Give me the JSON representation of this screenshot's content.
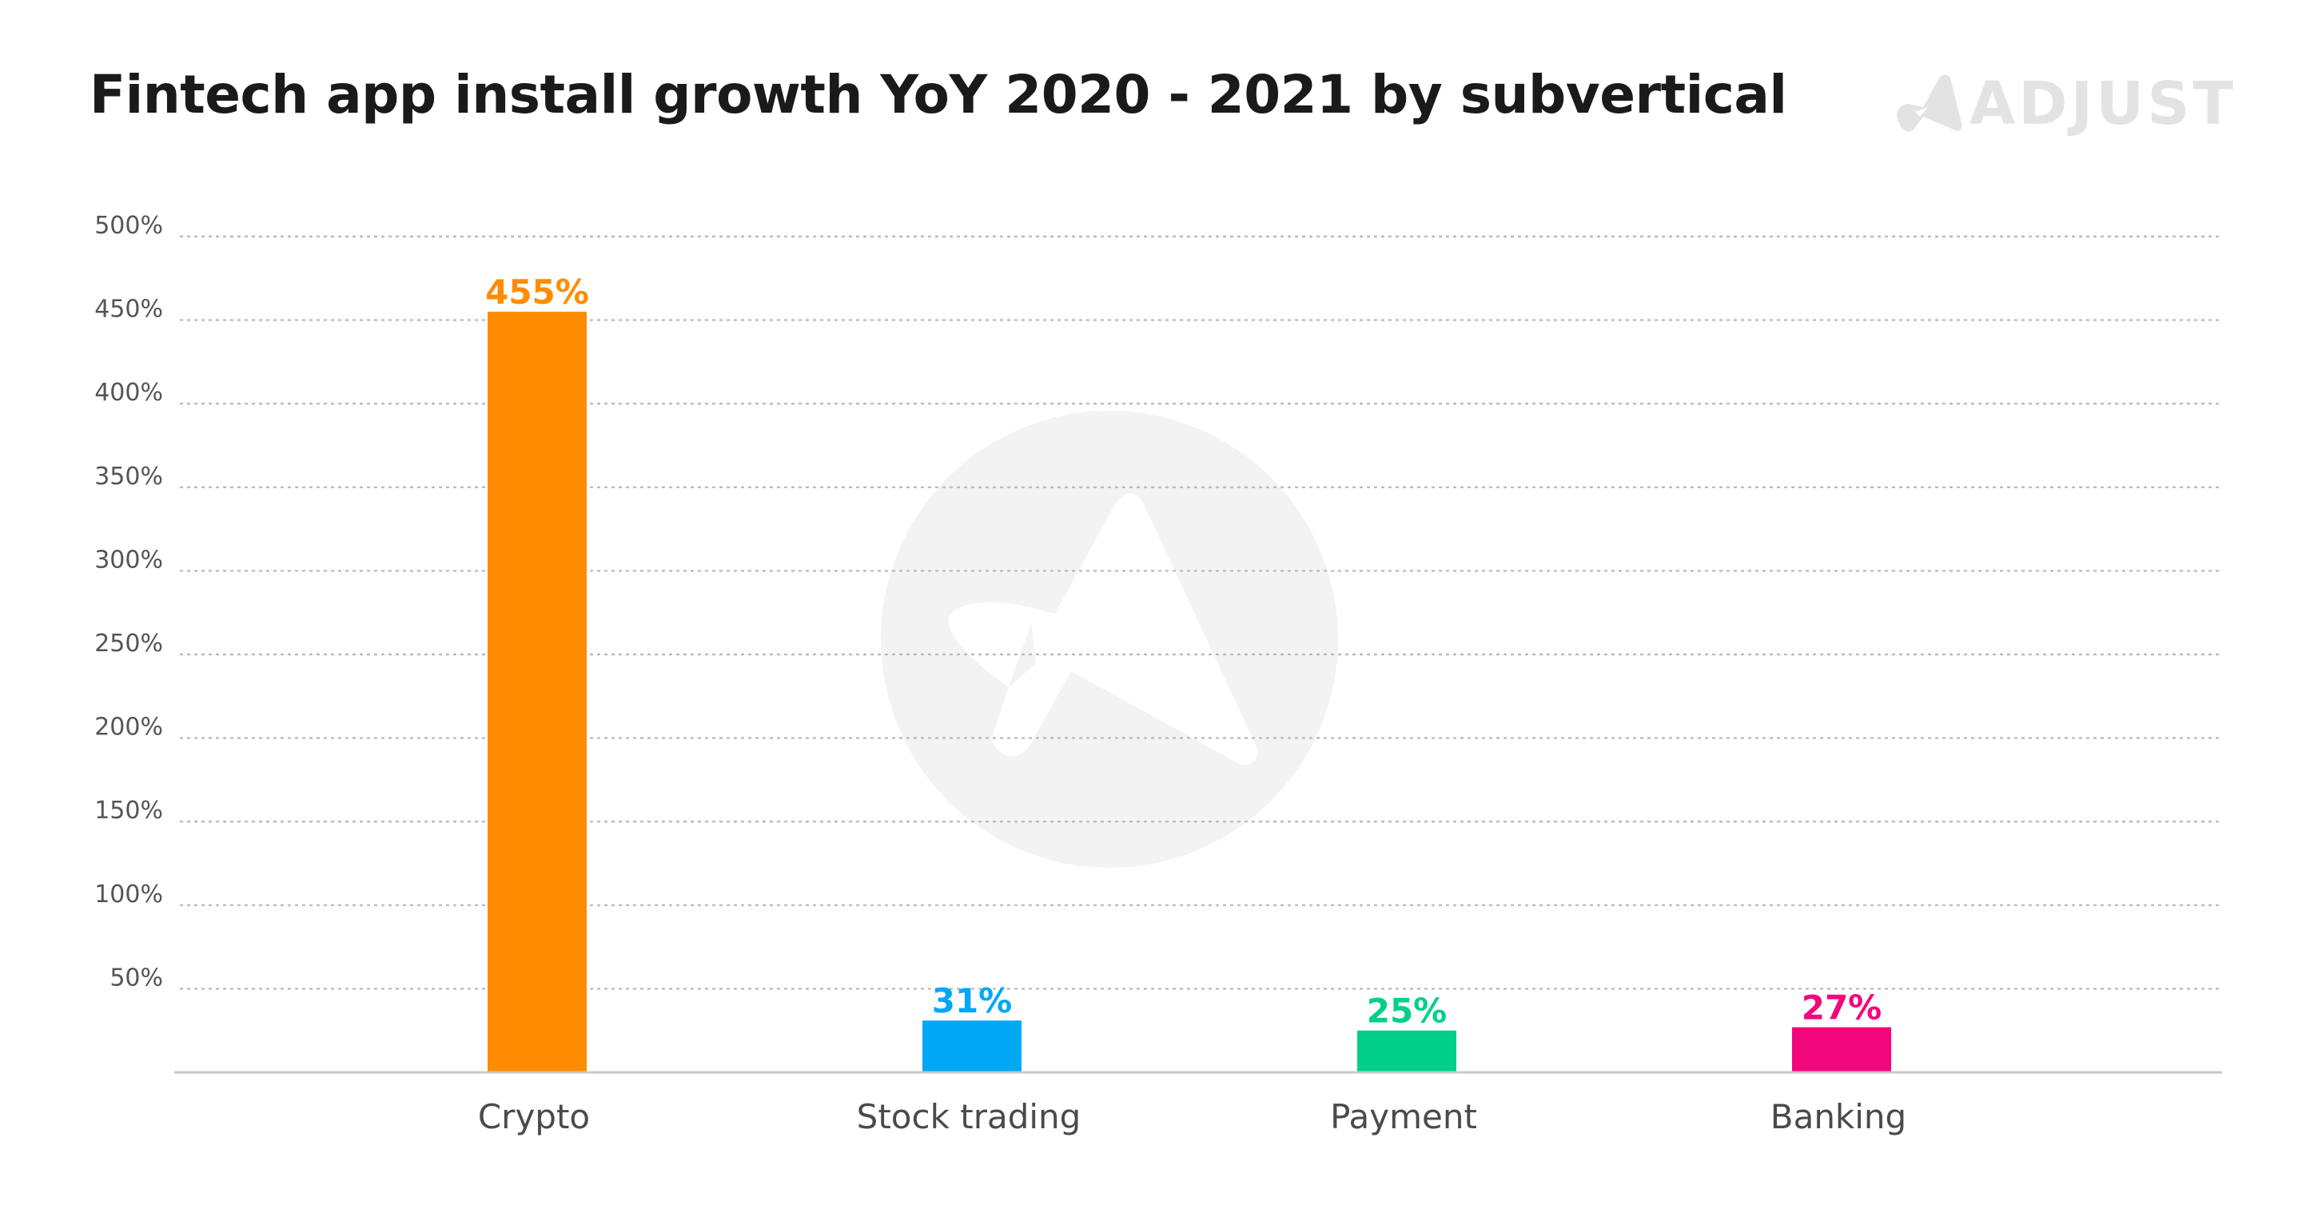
{
  "title": "Fintech app install growth YoY 2020 - 2021 by subvertical",
  "brand": {
    "logo_text": "ADJUST",
    "logo_icon": "adjust-a-icon",
    "logo_color": "#e3e3e3",
    "watermark_icon": "adjust-circle-watermark-icon",
    "watermark_color": "#f3f3f3"
  },
  "chart_data": {
    "type": "bar",
    "title": "Fintech app install growth YoY 2020 - 2021 by subvertical",
    "xlabel": "",
    "ylabel": "",
    "categories": [
      "Crypto",
      "Stock trading",
      "Payment",
      "Banking"
    ],
    "values": [
      455,
      31,
      25,
      27
    ],
    "data_labels": [
      "455%",
      "31%",
      "25%",
      "27%"
    ],
    "colors": [
      "#ff8c00",
      "#00a7f5",
      "#00d08a",
      "#f2067b"
    ],
    "ylim": [
      0,
      500
    ],
    "yticks": [
      50,
      100,
      150,
      200,
      250,
      300,
      350,
      400,
      450,
      500
    ],
    "ytick_labels": [
      "50%",
      "100%",
      "150%",
      "200%",
      "250%",
      "300%",
      "350%",
      "400%",
      "450%",
      "500%"
    ],
    "grid": true,
    "grid_style": "dotted",
    "legend": "none"
  }
}
